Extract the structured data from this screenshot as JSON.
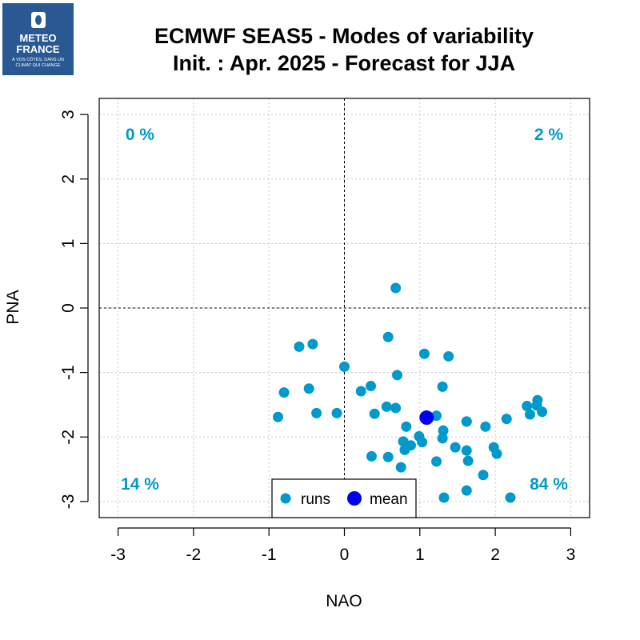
{
  "logo": {
    "line1": "METEO",
    "line2": "FRANCE",
    "tagline1": "À VOS CÔTÉS, DANS UN",
    "tagline2": "CLIMAT QUI CHANGE"
  },
  "title": {
    "line1": "ECMWF SEAS5 - Modes of variability",
    "line2": "Init. : Apr. 2025 - Forecast for JJA"
  },
  "colors": {
    "runs": "#0099cc",
    "mean": "#0000ee",
    "quadrant_text": "#0099cc"
  },
  "chart_data": {
    "type": "scatter",
    "xlabel": "NAO",
    "ylabel": "PNA",
    "xlim": [
      -3.25,
      3.25
    ],
    "ylim": [
      -3.25,
      3.25
    ],
    "x_ticks": [
      -3,
      -2,
      -1,
      0,
      1,
      2,
      3
    ],
    "y_ticks": [
      -3,
      -2,
      -1,
      0,
      1,
      2,
      3
    ],
    "grid": true,
    "legend_position": "bottom-center",
    "quadrant_labels": [
      {
        "position": "top-left",
        "text": "0 %"
      },
      {
        "position": "top-right",
        "text": "2 %"
      },
      {
        "position": "bottom-left",
        "text": "14 %"
      },
      {
        "position": "bottom-right",
        "text": "84 %"
      }
    ],
    "series": [
      {
        "name": "runs",
        "points": [
          [
            0.68,
            0.31
          ],
          [
            -0.6,
            -0.6
          ],
          [
            -0.42,
            -0.56
          ],
          [
            0.58,
            -0.45
          ],
          [
            1.06,
            -0.71
          ],
          [
            1.38,
            -0.75
          ],
          [
            0.0,
            -0.91
          ],
          [
            0.7,
            -1.04
          ],
          [
            -0.8,
            -1.31
          ],
          [
            -0.47,
            -1.25
          ],
          [
            0.35,
            -1.21
          ],
          [
            0.22,
            -1.29
          ],
          [
            1.3,
            -1.22
          ],
          [
            -0.88,
            -1.69
          ],
          [
            -0.37,
            -1.63
          ],
          [
            -0.1,
            -1.63
          ],
          [
            0.56,
            -1.53
          ],
          [
            0.68,
            -1.55
          ],
          [
            0.4,
            -1.64
          ],
          [
            2.42,
            -1.52
          ],
          [
            2.56,
            -1.43
          ],
          [
            2.55,
            -1.51
          ],
          [
            2.62,
            -1.61
          ],
          [
            2.46,
            -1.65
          ],
          [
            2.15,
            -1.72
          ],
          [
            1.22,
            -1.67
          ],
          [
            1.62,
            -1.76
          ],
          [
            1.62,
            -1.76
          ],
          [
            1.87,
            -1.84
          ],
          [
            0.82,
            -1.84
          ],
          [
            1.31,
            -1.9
          ],
          [
            0.99,
            -1.99
          ],
          [
            1.3,
            -2.02
          ],
          [
            0.78,
            -2.07
          ],
          [
            1.03,
            -2.08
          ],
          [
            0.88,
            -2.13
          ],
          [
            1.47,
            -2.16
          ],
          [
            1.98,
            -2.16
          ],
          [
            0.8,
            -2.2
          ],
          [
            1.62,
            -2.21
          ],
          [
            2.02,
            -2.26
          ],
          [
            0.36,
            -2.3
          ],
          [
            0.58,
            -2.31
          ],
          [
            1.22,
            -2.38
          ],
          [
            1.64,
            -2.37
          ],
          [
            0.75,
            -2.47
          ],
          [
            1.84,
            -2.59
          ],
          [
            1.62,
            -2.83
          ],
          [
            1.32,
            -2.94
          ],
          [
            2.2,
            -2.94
          ]
        ]
      },
      {
        "name": "mean",
        "points": [
          [
            1.09,
            -1.7
          ]
        ]
      }
    ]
  }
}
